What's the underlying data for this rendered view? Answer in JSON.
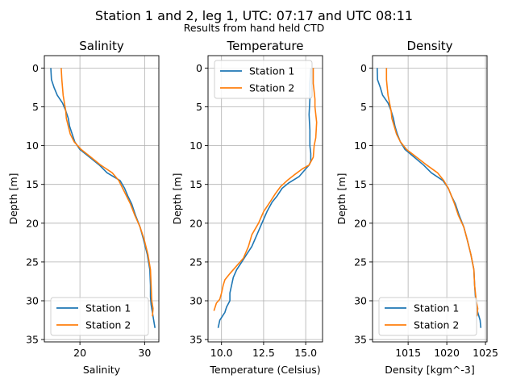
{
  "figure": {
    "title": "Station 1 and 2, leg 1, UTC: 07:17 and UTC 08:11",
    "subtitle": "Results from hand held CTD"
  },
  "colors": {
    "station1": "#1f77b4",
    "station2": "#ff7f0e",
    "grid": "#b0b0b0"
  },
  "chart_data": [
    {
      "type": "line",
      "title": "Salinity",
      "xlabel": "Salinity",
      "ylabel": "Depth [m]",
      "xlim": [
        14.5,
        32.2
      ],
      "ylim": [
        35.3,
        -1.6
      ],
      "y_inverted": true,
      "grid": true,
      "legend": "lower left",
      "xticks": [
        20,
        30
      ],
      "yticks": [
        0,
        5,
        10,
        15,
        20,
        25,
        30,
        35
      ],
      "series": [
        {
          "name": "Station 1",
          "points": [
            [
              15.5,
              0
            ],
            [
              15.6,
              1.5
            ],
            [
              16,
              2.5
            ],
            [
              16.5,
              3.5
            ],
            [
              17.3,
              4.5
            ],
            [
              17.8,
              5.5
            ],
            [
              18.2,
              6.5
            ],
            [
              18.4,
              7.5
            ],
            [
              18.8,
              8.5
            ],
            [
              19.2,
              9.5
            ],
            [
              20,
              10.5
            ],
            [
              21.5,
              11.5
            ],
            [
              23,
              12.5
            ],
            [
              24.2,
              13.5
            ],
            [
              26.2,
              14.5
            ],
            [
              26.9,
              15.5
            ],
            [
              27.4,
              16.5
            ],
            [
              28,
              17.5
            ],
            [
              28.6,
              19
            ],
            [
              29.3,
              20.5
            ],
            [
              29.8,
              22
            ],
            [
              30.4,
              24
            ],
            [
              30.8,
              26
            ],
            [
              30.9,
              28
            ],
            [
              30.9,
              29.5
            ],
            [
              31,
              30.5
            ],
            [
              31.2,
              31.5
            ],
            [
              31.4,
              32.5
            ],
            [
              31.6,
              33.5
            ]
          ]
        },
        {
          "name": "Station 2",
          "points": [
            [
              17.1,
              0
            ],
            [
              17.2,
              1.5
            ],
            [
              17.3,
              2.5
            ],
            [
              17.4,
              3.5
            ],
            [
              17.6,
              4.5
            ],
            [
              17.8,
              5.5
            ],
            [
              17.9,
              6.5
            ],
            [
              18.2,
              7.5
            ],
            [
              18.5,
              8.5
            ],
            [
              19.1,
              9.5
            ],
            [
              20.2,
              10.5
            ],
            [
              21.7,
              11.5
            ],
            [
              23.2,
              12.5
            ],
            [
              25,
              13.5
            ],
            [
              26,
              14.5
            ],
            [
              26.6,
              15.5
            ],
            [
              27.2,
              16.5
            ],
            [
              27.8,
              17.5
            ],
            [
              28.5,
              19
            ],
            [
              29.3,
              20.5
            ],
            [
              29.9,
              22
            ],
            [
              30.5,
              24
            ],
            [
              30.9,
              26
            ],
            [
              31,
              28
            ],
            [
              31.1,
              30
            ],
            [
              31.3,
              31
            ],
            [
              31.2,
              32
            ]
          ]
        }
      ]
    },
    {
      "type": "line",
      "title": "Temperature",
      "xlabel": "Temperature (Celsius)",
      "ylabel": "Depth [m]",
      "xlim": [
        9.2,
        16.0
      ],
      "ylim": [
        35.3,
        -1.6
      ],
      "y_inverted": true,
      "grid": true,
      "legend": "upper left",
      "xticks": [
        10.0,
        12.5,
        15.0
      ],
      "xtick_labels": [
        "10.0",
        "12.5",
        "15.0"
      ],
      "yticks": [
        0,
        5,
        10,
        15,
        20,
        25,
        30,
        35
      ],
      "series": [
        {
          "name": "Station 1",
          "points": [
            [
              15.3,
              0
            ],
            [
              15.25,
              2
            ],
            [
              15.25,
              4
            ],
            [
              15.2,
              6
            ],
            [
              15.25,
              8
            ],
            [
              15.25,
              10
            ],
            [
              15.3,
              11
            ],
            [
              15.3,
              12
            ],
            [
              15.2,
              12.5
            ],
            [
              15,
              13
            ],
            [
              14.6,
              14
            ],
            [
              14,
              14.8
            ],
            [
              13.6,
              15.5
            ],
            [
              13.3,
              16.5
            ],
            [
              13,
              17.3
            ],
            [
              12.7,
              18.5
            ],
            [
              12.4,
              20
            ],
            [
              12.1,
              21.5
            ],
            [
              11.8,
              23
            ],
            [
              11.5,
              24
            ],
            [
              11.2,
              25
            ],
            [
              10.9,
              26
            ],
            [
              10.7,
              27
            ],
            [
              10.6,
              28
            ],
            [
              10.5,
              29
            ],
            [
              10.5,
              30
            ],
            [
              10.3,
              30.8
            ],
            [
              10.2,
              31.5
            ],
            [
              9.9,
              32.5
            ],
            [
              9.8,
              33.5
            ]
          ]
        },
        {
          "name": "Station 2",
          "points": [
            [
              15.45,
              0
            ],
            [
              15.45,
              2
            ],
            [
              15.55,
              4
            ],
            [
              15.55,
              5
            ],
            [
              15.65,
              7
            ],
            [
              15.6,
              9
            ],
            [
              15.5,
              10
            ],
            [
              15.45,
              11.5
            ],
            [
              15.2,
              12.5
            ],
            [
              14.8,
              13
            ],
            [
              14.3,
              13.8
            ],
            [
              13.9,
              14.5
            ],
            [
              13.5,
              15.3
            ],
            [
              13.2,
              16.2
            ],
            [
              12.9,
              17.2
            ],
            [
              12.5,
              18.5
            ],
            [
              12.2,
              20
            ],
            [
              11.8,
              21.5
            ],
            [
              11.6,
              23
            ],
            [
              11.3,
              24.5
            ],
            [
              10.9,
              25.5
            ],
            [
              10.5,
              26.5
            ],
            [
              10.2,
              27.3
            ],
            [
              10.1,
              28
            ],
            [
              10,
              29
            ],
            [
              9.9,
              29.8
            ],
            [
              9.7,
              30.3
            ],
            [
              9.55,
              31.3
            ]
          ]
        }
      ]
    },
    {
      "type": "line",
      "title": "Density",
      "xlabel": "Density [kgm^-3]",
      "ylabel": "Depth [m]",
      "xlim": [
        1010.4,
        1025.2
      ],
      "ylim": [
        35.3,
        -1.6
      ],
      "y_inverted": true,
      "grid": true,
      "legend": "lower left",
      "xticks": [
        1015,
        1020,
        1025
      ],
      "yticks": [
        0,
        5,
        10,
        15,
        20,
        25,
        30,
        35
      ],
      "series": [
        {
          "name": "Station 1",
          "points": [
            [
              1011,
              0
            ],
            [
              1011.05,
              1.5
            ],
            [
              1011.4,
              2.5
            ],
            [
              1011.7,
              3.5
            ],
            [
              1012.4,
              4.5
            ],
            [
              1012.8,
              5.5
            ],
            [
              1013.1,
              6.5
            ],
            [
              1013.3,
              7.5
            ],
            [
              1013.6,
              8.5
            ],
            [
              1014,
              9.5
            ],
            [
              1014.6,
              10.5
            ],
            [
              1015.8,
              11.5
            ],
            [
              1017,
              12.5
            ],
            [
              1018,
              13.5
            ],
            [
              1019.5,
              14.5
            ],
            [
              1020.2,
              15.5
            ],
            [
              1020.6,
              16.5
            ],
            [
              1021.1,
              17.5
            ],
            [
              1021.6,
              19
            ],
            [
              1022.2,
              20.5
            ],
            [
              1022.6,
              22
            ],
            [
              1023.1,
              24
            ],
            [
              1023.5,
              26
            ],
            [
              1023.6,
              28
            ],
            [
              1023.7,
              29.5
            ],
            [
              1023.8,
              30.5
            ],
            [
              1024,
              31.5
            ],
            [
              1024.3,
              32.5
            ],
            [
              1024.4,
              33.5
            ]
          ]
        },
        {
          "name": "Station 2",
          "points": [
            [
              1012.2,
              0
            ],
            [
              1012.2,
              1.5
            ],
            [
              1012.3,
              2.5
            ],
            [
              1012.4,
              3.5
            ],
            [
              1012.6,
              4.5
            ],
            [
              1012.8,
              5.5
            ],
            [
              1012.9,
              6.5
            ],
            [
              1013.2,
              7.5
            ],
            [
              1013.5,
              8.5
            ],
            [
              1014,
              9.5
            ],
            [
              1014.8,
              10.5
            ],
            [
              1016.1,
              11.5
            ],
            [
              1017.4,
              12.5
            ],
            [
              1018.8,
              13.5
            ],
            [
              1019.6,
              14.5
            ],
            [
              1020.2,
              15.5
            ],
            [
              1020.6,
              16.5
            ],
            [
              1021,
              17.5
            ],
            [
              1021.5,
              19
            ],
            [
              1022.2,
              20.5
            ],
            [
              1022.6,
              22
            ],
            [
              1023.1,
              24
            ],
            [
              1023.5,
              26
            ],
            [
              1023.6,
              28
            ],
            [
              1023.8,
              30
            ],
            [
              1024,
              31
            ],
            [
              1023.9,
              32
            ]
          ]
        }
      ]
    }
  ]
}
